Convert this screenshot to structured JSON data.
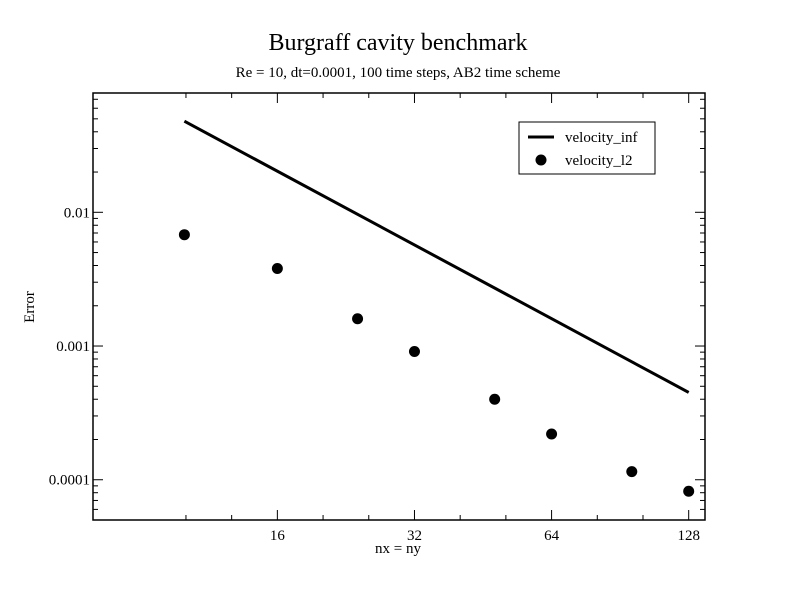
{
  "chart_data": {
    "type": "line",
    "title": "Burgraff cavity benchmark",
    "subtitle": "Re = 10, dt=0.0001, 100 time steps, AB2 time scheme",
    "xlabel": "nx = ny",
    "ylabel": "Error",
    "x_scale": "log",
    "y_scale": "log",
    "x_ticks": [
      16,
      32,
      64,
      128
    ],
    "x_tick_labels": [
      "16",
      "32",
      "64",
      "128"
    ],
    "y_ticks": [
      0.0001,
      0.001,
      0.01
    ],
    "y_tick_labels": [
      "0.0001",
      "0.001",
      "0.01"
    ],
    "xlim": [
      6.3,
      139
    ],
    "ylim": [
      5e-05,
      0.078
    ],
    "grid": false,
    "legend_position": "top-right",
    "series": [
      {
        "name": "velocity_inf",
        "style": "line",
        "color": "#000000",
        "x": [
          10,
          128
        ],
        "y": [
          0.048,
          0.00045
        ]
      },
      {
        "name": "velocity_l2",
        "style": "markers",
        "color": "#000000",
        "x": [
          10,
          16,
          24,
          32,
          48,
          64,
          96,
          128
        ],
        "y": [
          0.0068,
          0.0038,
          0.0016,
          0.00091,
          0.0004,
          0.00022,
          0.000115,
          8.2e-05
        ]
      }
    ]
  }
}
